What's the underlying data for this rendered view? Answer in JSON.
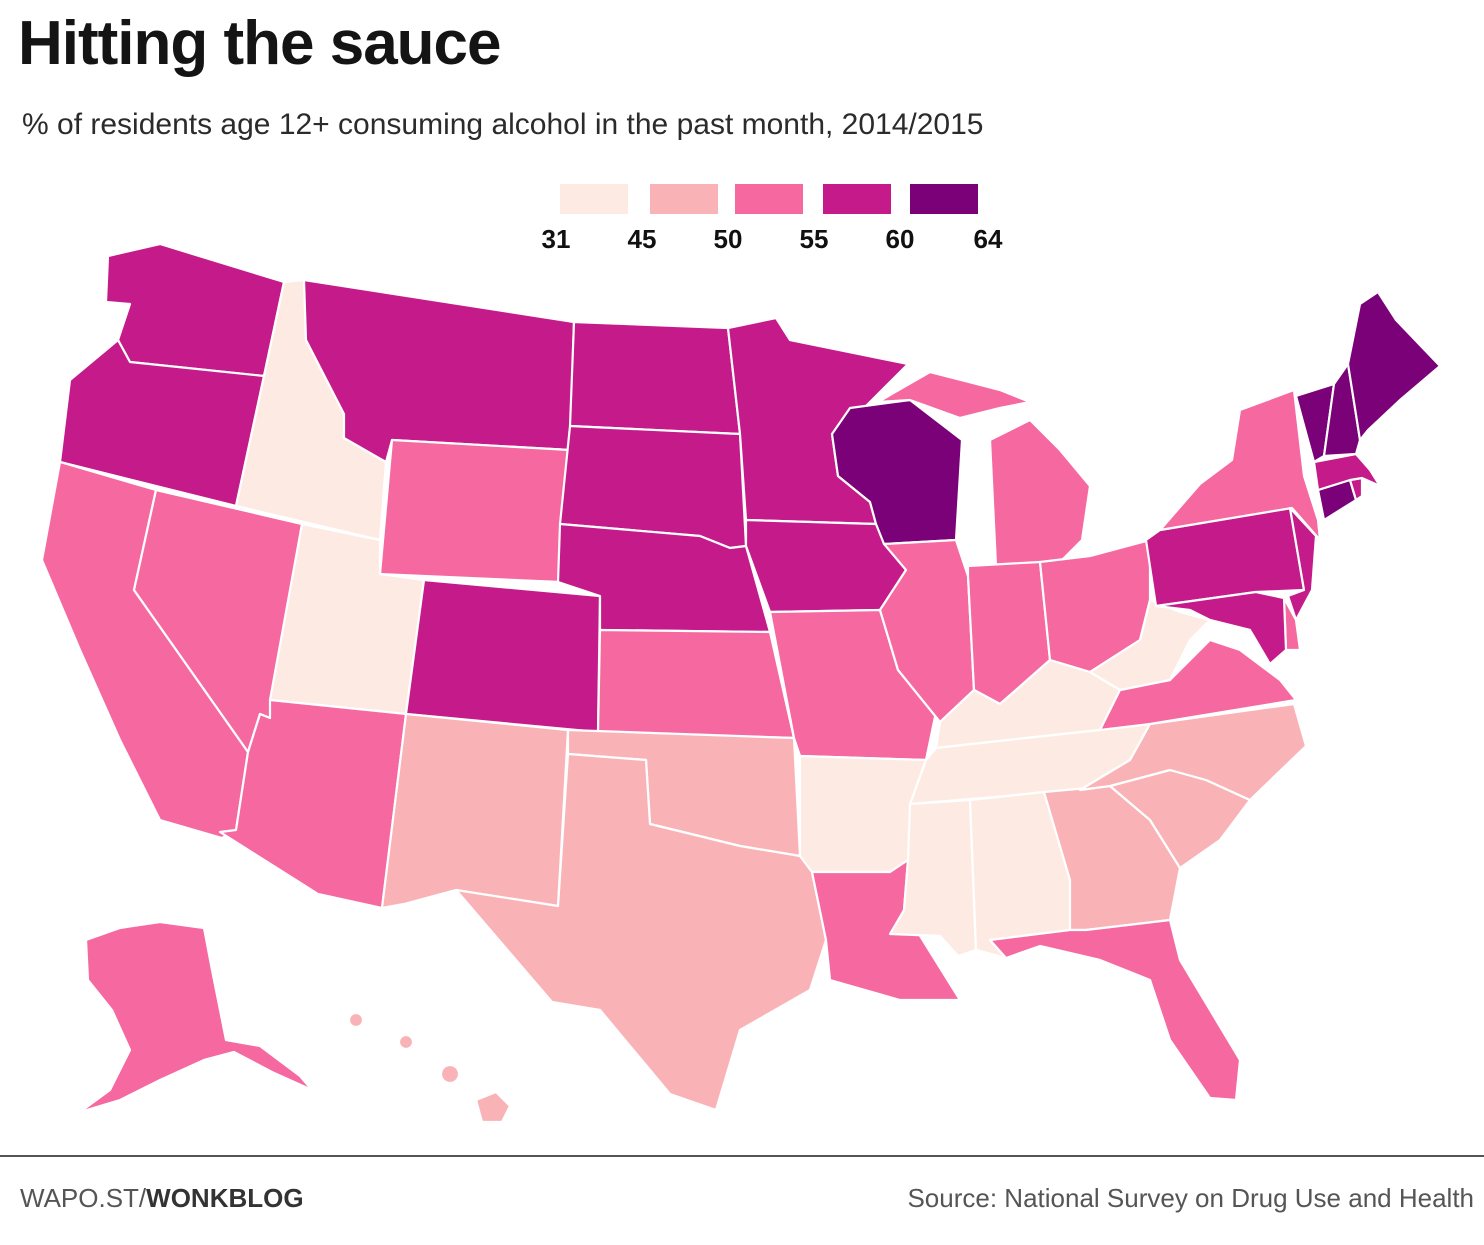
{
  "title": "Hitting the sauce",
  "subtitle": "% of residents age 12+ consuming alcohol in the past month, 2014/2015",
  "legend": {
    "ticks": [
      "31",
      "45",
      "50",
      "55",
      "60",
      "64"
    ],
    "colors": [
      "#fdebe3",
      "#f9b3b7",
      "#f569a0",
      "#c51b8a",
      "#7a0177"
    ]
  },
  "footer": {
    "link_prefix": "WAPO.ST/",
    "link_bold": "WONKBLOG",
    "source": "Source: National Survey on Drug Use and Health"
  },
  "map": {
    "class_colors": {
      "b1": "#fdebe3",
      "b2": "#f9b3b7",
      "b3": "#f569a0",
      "b4": "#c51b8a",
      "b5": "#7a0177"
    },
    "state_bins": {
      "WA": "b4",
      "OR": "b4",
      "CA": "b3",
      "NV": "b3",
      "ID": "b1",
      "MT": "b4",
      "WY": "b3",
      "UT": "b1",
      "AZ": "b3",
      "CO": "b4",
      "NM": "b2",
      "ND": "b4",
      "SD": "b4",
      "NE": "b4",
      "KS": "b3",
      "OK": "b2",
      "TX": "b2",
      "MN": "b4",
      "IA": "b4",
      "MO": "b3",
      "AR": "b1",
      "LA": "b3",
      "WI": "b5",
      "IL": "b3",
      "MI": "b3",
      "IN": "b3",
      "OH": "b3",
      "KY": "b1",
      "TN": "b1",
      "MS": "b1",
      "AL": "b1",
      "GA": "b2",
      "FL": "b3",
      "SC": "b2",
      "NC": "b2",
      "VA": "b3",
      "WV": "b1",
      "PA": "b4",
      "NY": "b3",
      "NJ": "b4",
      "DE": "b3",
      "MD": "b4",
      "CT": "b5",
      "RI": "b4",
      "MA": "b4",
      "VT": "b5",
      "NH": "b5",
      "ME": "b5",
      "AK": "b3",
      "HI": "b2"
    }
  }
}
